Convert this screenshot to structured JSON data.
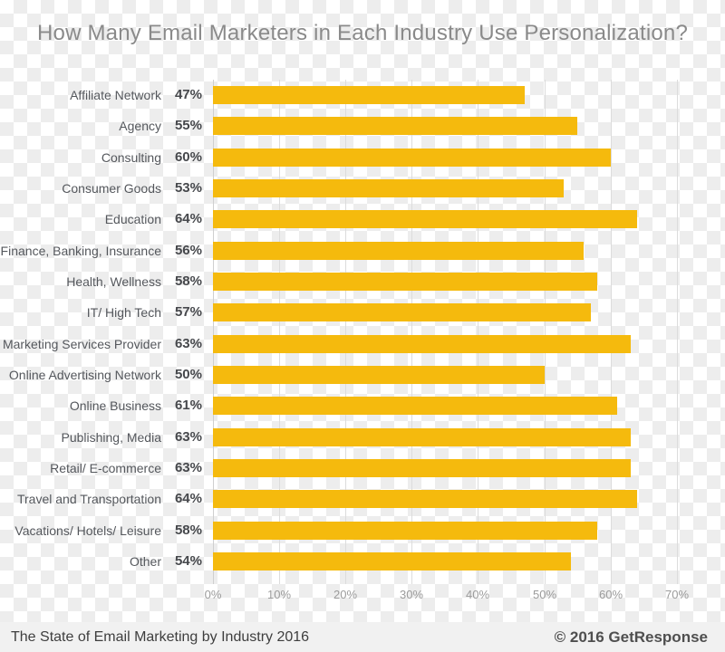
{
  "title": "How Many Email Marketers in Each Industry Use Personalization?",
  "footer": {
    "left": "The State of Email Marketing by Industry 2016",
    "right": "© 2016 GetResponse"
  },
  "colors": {
    "bar": "#F5BA0D",
    "title_text": "#8A8A8A",
    "category_text": "#54575C",
    "value_text": "#46484C",
    "tick_text": "#9B9B9B",
    "gridline": "#DCDCDC",
    "axis_line": "#CFCFCF",
    "footer_band": "#F1F1F1",
    "footer_text": "#3E3E3E",
    "copyright_text": "#4F4F4F",
    "checker_light": "#FFFFFF",
    "checker_dark": "#EDEDED"
  },
  "chart_data": {
    "type": "bar",
    "orientation": "horizontal",
    "title": "How Many Email Marketers in Each Industry Use Personalization?",
    "categories": [
      "Affiliate Network",
      "Agency",
      "Consulting",
      "Consumer Goods",
      "Education",
      "Finance, Banking, Insurance",
      "Health, Wellness",
      "IT/ High Tech",
      "Marketing Services Provider",
      "Online Advertising Network",
      "Online Business",
      "Publishing, Media",
      "Retail/ E-commerce",
      "Travel and Transportation",
      "Vacations/ Hotels/ Leisure",
      "Other"
    ],
    "values": [
      47,
      55,
      60,
      53,
      64,
      56,
      58,
      57,
      63,
      50,
      61,
      63,
      63,
      64,
      58,
      54
    ],
    "value_labels": [
      "47%",
      "55%",
      "60%",
      "53%",
      "64%",
      "56%",
      "58%",
      "57%",
      "63%",
      "50%",
      "61%",
      "63%",
      "63%",
      "64%",
      "58%",
      "54%"
    ],
    "x_ticks": [
      "0%",
      "10%",
      "20%",
      "30%",
      "40%",
      "50%",
      "60%",
      "70%"
    ],
    "xlabel": "",
    "ylabel": "",
    "xlim": [
      0,
      70
    ],
    "grid": true,
    "legend": "none"
  }
}
